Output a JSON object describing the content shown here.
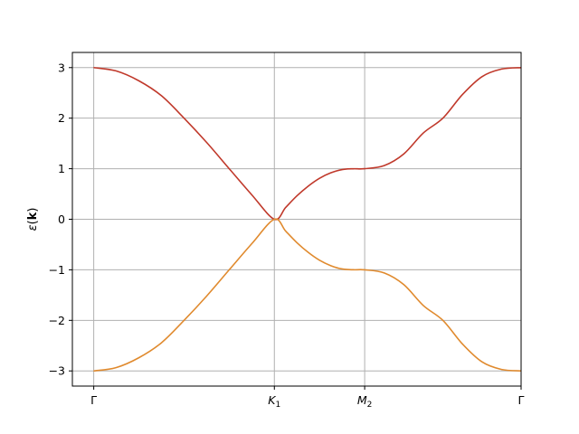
{
  "chart_data": {
    "type": "line",
    "title": "",
    "xlabel": "",
    "ylabel_parts": {
      "symbol": "ε",
      "open": "(",
      "bold": "k",
      "close": ")"
    },
    "x_ticks": [
      {
        "x": 0.0,
        "label": "Γ",
        "sub": ""
      },
      {
        "x": 2.0944,
        "label": "K",
        "sub": "1"
      },
      {
        "x": 3.1416,
        "label": "M",
        "sub": "2"
      },
      {
        "x": 4.9554,
        "label": "Γ",
        "sub": ""
      }
    ],
    "y_ticks": [
      {
        "value": 3,
        "label": "3"
      },
      {
        "value": 2,
        "label": "2"
      },
      {
        "value": 1,
        "label": "1"
      },
      {
        "value": 0,
        "label": "0"
      },
      {
        "value": -1,
        "label": "−1"
      },
      {
        "value": -2,
        "label": "−2"
      },
      {
        "value": -3,
        "label": "−3"
      }
    ],
    "xlim": [
      -0.2478,
      4.9554
    ],
    "ylim": [
      -3.3,
      3.3
    ],
    "grid": true,
    "colors": {
      "upper": "#c0392b",
      "lower": "#e08a2e",
      "grid": "#b0b0b0"
    },
    "series": [
      {
        "color": "#c0392b",
        "x": [
          0,
          0.2618,
          0.5236,
          0.7854,
          1.0472,
          1.309,
          1.5708,
          1.8326,
          2.0944,
          2.2253,
          2.3562,
          2.4871,
          2.618,
          2.7489,
          2.8798,
          3.0107,
          3.1416,
          3.3683,
          3.5951,
          3.8218,
          4.0485,
          4.2752,
          4.502,
          4.7287,
          4.9554
        ],
        "values": [
          3.0,
          2.933,
          2.739,
          2.443,
          2.0,
          1.52,
          1.0,
          0.483,
          0.0,
          0.234,
          0.464,
          0.656,
          0.811,
          0.918,
          0.983,
          0.999,
          1.0,
          1.062,
          1.293,
          1.707,
          2.0,
          2.467,
          2.821,
          2.971,
          3.0
        ]
      },
      {
        "color": "#e08a2e",
        "x": [
          0,
          0.2618,
          0.5236,
          0.7854,
          1.0472,
          1.309,
          1.5708,
          1.8326,
          2.0944,
          2.2253,
          2.3562,
          2.4871,
          2.618,
          2.7489,
          2.8798,
          3.0107,
          3.1416,
          3.3683,
          3.5951,
          3.8218,
          4.0485,
          4.2752,
          4.502,
          4.7287,
          4.9554
        ],
        "values": [
          -3.0,
          -2.933,
          -2.739,
          -2.443,
          -2.0,
          -1.52,
          -1.0,
          -0.483,
          0.0,
          -0.234,
          -0.464,
          -0.656,
          -0.811,
          -0.918,
          -0.983,
          -0.999,
          -1.0,
          -1.062,
          -1.293,
          -1.707,
          -2.0,
          -2.467,
          -2.821,
          -2.971,
          -3.0
        ]
      }
    ]
  }
}
